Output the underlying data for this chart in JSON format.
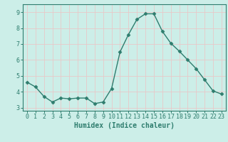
{
  "x": [
    0,
    1,
    2,
    3,
    4,
    5,
    6,
    7,
    8,
    9,
    10,
    11,
    12,
    13,
    14,
    15,
    16,
    17,
    18,
    19,
    20,
    21,
    22,
    23
  ],
  "y": [
    4.6,
    4.3,
    3.7,
    3.35,
    3.6,
    3.55,
    3.6,
    3.6,
    3.25,
    3.35,
    4.2,
    6.5,
    7.6,
    8.55,
    8.9,
    8.9,
    7.8,
    7.05,
    6.55,
    6.0,
    5.45,
    4.75,
    4.05,
    3.85
  ],
  "line_color": "#2e7d6e",
  "marker": "D",
  "markersize": 2.5,
  "linewidth": 1.0,
  "bg_color": "#cceee8",
  "grid_color": "#e8c8c8",
  "xlabel": "Humidex (Indice chaleur)",
  "xlabel_fontsize": 7,
  "xlim": [
    -0.5,
    23.5
  ],
  "ylim": [
    2.8,
    9.5
  ],
  "yticks": [
    3,
    4,
    5,
    6,
    7,
    8,
    9
  ],
  "xticks": [
    0,
    1,
    2,
    3,
    4,
    5,
    6,
    7,
    8,
    9,
    10,
    11,
    12,
    13,
    14,
    15,
    16,
    17,
    18,
    19,
    20,
    21,
    22,
    23
  ],
  "tick_fontsize": 6,
  "spine_color": "#2e7d6e",
  "axis_color": "#2e7d6e"
}
